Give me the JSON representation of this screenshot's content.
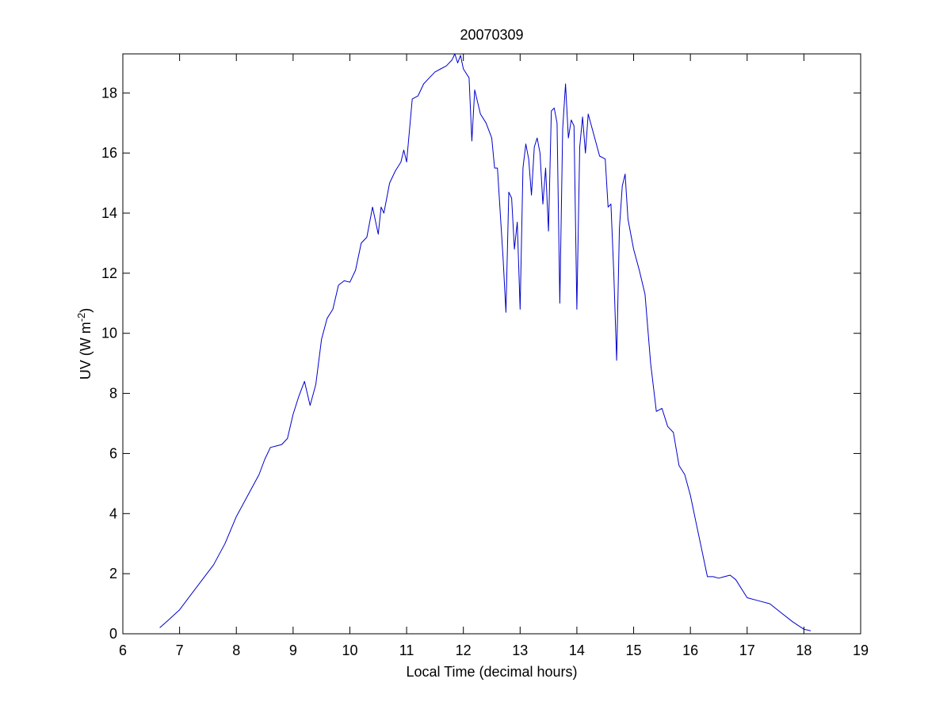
{
  "chart_data": {
    "type": "line",
    "title": "20070309",
    "xlabel": "Local Time (decimal hours)",
    "ylabel": {
      "prefix": "UV (W m",
      "superscript": "-2",
      "suffix": ")"
    },
    "xlim": [
      6,
      19
    ],
    "ylim": [
      0,
      19.3
    ],
    "xticks": [
      6,
      7,
      8,
      9,
      10,
      11,
      12,
      13,
      14,
      15,
      16,
      17,
      18,
      19
    ],
    "yticks": [
      0,
      2,
      4,
      6,
      8,
      10,
      12,
      14,
      16,
      18
    ],
    "grid": false,
    "line_color": "#0000cc",
    "series": [
      {
        "x": [
          6.65,
          6.8,
          7.0,
          7.2,
          7.4,
          7.6,
          7.8,
          8.0,
          8.2,
          8.4,
          8.5,
          8.6,
          8.7,
          8.8,
          8.9,
          9.0,
          9.1,
          9.2,
          9.3,
          9.4,
          9.5,
          9.6,
          9.7,
          9.8,
          9.9,
          10.0,
          10.1,
          10.2,
          10.3,
          10.4,
          10.5,
          10.55,
          10.6,
          10.7,
          10.8,
          10.9,
          10.95,
          11.0,
          11.1,
          11.2,
          11.3,
          11.4,
          11.5,
          11.6,
          11.7,
          11.8,
          11.85,
          11.9,
          11.95,
          12.0,
          12.1,
          12.15,
          12.2,
          12.3,
          12.4,
          12.5,
          12.55,
          12.6,
          12.7,
          12.75,
          12.8,
          12.85,
          12.9,
          12.95,
          13.0,
          13.05,
          13.1,
          13.15,
          13.2,
          13.25,
          13.3,
          13.35,
          13.4,
          13.45,
          13.5,
          13.55,
          13.6,
          13.65,
          13.7,
          13.75,
          13.8,
          13.85,
          13.9,
          13.95,
          14.0,
          14.05,
          14.1,
          14.15,
          14.2,
          14.3,
          14.4,
          14.5,
          14.55,
          14.6,
          14.65,
          14.7,
          14.75,
          14.8,
          14.85,
          14.9,
          15.0,
          15.1,
          15.2,
          15.3,
          15.4,
          15.5,
          15.6,
          15.7,
          15.8,
          15.9,
          16.0,
          16.1,
          16.2,
          16.3,
          16.4,
          16.5,
          16.6,
          16.7,
          16.8,
          17.0,
          17.2,
          17.4,
          17.6,
          17.8,
          18.0,
          18.12
        ],
        "y": [
          0.2,
          0.45,
          0.8,
          1.3,
          1.8,
          2.3,
          3.0,
          3.9,
          4.6,
          5.3,
          5.8,
          6.2,
          6.25,
          6.3,
          6.5,
          7.3,
          7.9,
          8.4,
          7.6,
          8.3,
          9.8,
          10.5,
          10.8,
          11.6,
          11.75,
          11.7,
          12.1,
          13.0,
          13.2,
          14.2,
          13.3,
          14.2,
          14.0,
          15.0,
          15.4,
          15.7,
          16.1,
          15.7,
          17.8,
          17.9,
          18.3,
          18.5,
          18.7,
          18.8,
          18.9,
          19.1,
          19.3,
          19.0,
          19.25,
          18.8,
          18.5,
          16.4,
          18.1,
          17.3,
          17.0,
          16.5,
          15.5,
          15.5,
          12.5,
          10.7,
          14.7,
          14.5,
          12.8,
          13.7,
          10.8,
          15.5,
          16.3,
          15.8,
          14.6,
          16.2,
          16.5,
          16.0,
          14.3,
          15.5,
          13.4,
          17.4,
          17.5,
          17.0,
          11.0,
          16.8,
          18.3,
          16.5,
          17.1,
          16.9,
          10.8,
          16.2,
          17.2,
          16.0,
          17.3,
          16.6,
          15.9,
          15.8,
          14.2,
          14.3,
          12.0,
          9.1,
          13.5,
          14.9,
          15.3,
          13.8,
          12.8,
          12.1,
          11.3,
          9.0,
          7.4,
          7.5,
          6.9,
          6.7,
          5.6,
          5.3,
          4.6,
          3.7,
          2.8,
          1.9,
          1.9,
          1.85,
          1.9,
          1.95,
          1.8,
          1.2,
          1.1,
          1.0,
          0.7,
          0.4,
          0.15,
          0.1
        ]
      }
    ]
  }
}
